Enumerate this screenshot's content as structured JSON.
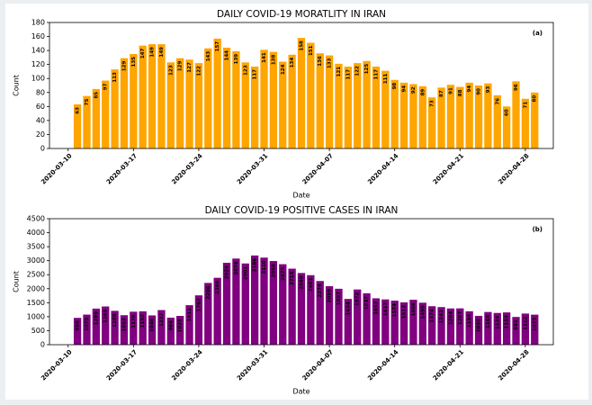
{
  "chart_data": [
    {
      "type": "bar",
      "title": "DAILY COVID-19 MORATLITY IN IRAN",
      "annotation": "(a)",
      "xlabel": "Date",
      "ylabel": "Count",
      "color": "#ffa500",
      "label_color": "#2b2b8c",
      "x": [
        "2020-03-11",
        "2020-03-12",
        "2020-03-13",
        "2020-03-14",
        "2020-03-15",
        "2020-03-16",
        "2020-03-17",
        "2020-03-18",
        "2020-03-19",
        "2020-03-20",
        "2020-03-21",
        "2020-03-22",
        "2020-03-23",
        "2020-03-24",
        "2020-03-25",
        "2020-03-26",
        "2020-03-27",
        "2020-03-28",
        "2020-03-29",
        "2020-03-30",
        "2020-03-31",
        "2020-04-01",
        "2020-04-02",
        "2020-04-03",
        "2020-04-04",
        "2020-04-05",
        "2020-04-06",
        "2020-04-07",
        "2020-04-08",
        "2020-04-09",
        "2020-04-10",
        "2020-04-11",
        "2020-04-12",
        "2020-04-13",
        "2020-04-14",
        "2020-04-15",
        "2020-04-16",
        "2020-04-17",
        "2020-04-18",
        "2020-04-19",
        "2020-04-20",
        "2020-04-21",
        "2020-04-22",
        "2020-04-23",
        "2020-04-24",
        "2020-04-25",
        "2020-04-26",
        "2020-04-27",
        "2020-04-28",
        "2020-04-29"
      ],
      "values": [
        63,
        75,
        85,
        97,
        113,
        129,
        135,
        147,
        149,
        149,
        123,
        129,
        127,
        122,
        143,
        157,
        144,
        139,
        123,
        117,
        141,
        138,
        124,
        134,
        158,
        151,
        136,
        133,
        121,
        117,
        122,
        125,
        117,
        111,
        98,
        94,
        92,
        89,
        73,
        87,
        91,
        88,
        94,
        90,
        93,
        76,
        60,
        96,
        71,
        80
      ],
      "xlim": [
        "2020-03-08",
        "2020-05-01"
      ],
      "xticks": [
        "2020-03-10",
        "2020-03-17",
        "2020-03-24",
        "2020-03-31",
        "2020-04-07",
        "2020-04-14",
        "2020-04-21",
        "2020-04-28"
      ],
      "ylim": [
        0,
        180
      ],
      "yticks": [
        0,
        20,
        40,
        60,
        80,
        100,
        120,
        140,
        160,
        180
      ]
    },
    {
      "type": "bar",
      "title": "DAILY COVID-19 POSITIVE CASES IN IRAN",
      "annotation": "(b)",
      "xlabel": "Date",
      "ylabel": "Count",
      "color": "#800080",
      "label_color": "#f5a623",
      "x": [
        "2020-03-11",
        "2020-03-12",
        "2020-03-13",
        "2020-03-14",
        "2020-03-15",
        "2020-03-16",
        "2020-03-17",
        "2020-03-18",
        "2020-03-19",
        "2020-03-20",
        "2020-03-21",
        "2020-03-22",
        "2020-03-23",
        "2020-03-24",
        "2020-03-25",
        "2020-03-26",
        "2020-03-27",
        "2020-03-28",
        "2020-03-29",
        "2020-03-30",
        "2020-03-31",
        "2020-04-01",
        "2020-04-02",
        "2020-04-03",
        "2020-04-04",
        "2020-04-05",
        "2020-04-06",
        "2020-04-07",
        "2020-04-08",
        "2020-04-09",
        "2020-04-10",
        "2020-04-11",
        "2020-04-12",
        "2020-04-13",
        "2020-04-14",
        "2020-04-15",
        "2020-04-16",
        "2020-04-17",
        "2020-04-18",
        "2020-04-19",
        "2020-04-20",
        "2020-04-21",
        "2020-04-22",
        "2020-04-23",
        "2020-04-24",
        "2020-04-25",
        "2020-04-26",
        "2020-04-27",
        "2020-04-28",
        "2020-04-29"
      ],
      "values": [
        958,
        1075,
        1289,
        1365,
        1209,
        1053,
        1178,
        1192,
        1046,
        1237,
        966,
        1028,
        1411,
        1762,
        2206,
        2389,
        2926,
        3076,
        2901,
        3186,
        3110,
        2988,
        2875,
        2715,
        2560,
        2483,
        2274,
        2089,
        1997,
        1634,
        1972,
        1837,
        1657,
        1617,
        1574,
        1512,
        1606,
        1499,
        1374,
        1343,
        1294,
        1297,
        1194,
        1030,
        1168,
        1134,
        1153,
        991,
        1112,
        1073
      ],
      "xlim": [
        "2020-03-08",
        "2020-05-01"
      ],
      "xticks": [
        "2020-03-10",
        "2020-03-17",
        "2020-03-24",
        "2020-03-31",
        "2020-04-07",
        "2020-04-14",
        "2020-04-21",
        "2020-04-28"
      ],
      "ylim": [
        0,
        4500
      ],
      "yticks": [
        0,
        500,
        1000,
        1500,
        2000,
        2500,
        3000,
        3500,
        4000,
        4500
      ]
    }
  ]
}
